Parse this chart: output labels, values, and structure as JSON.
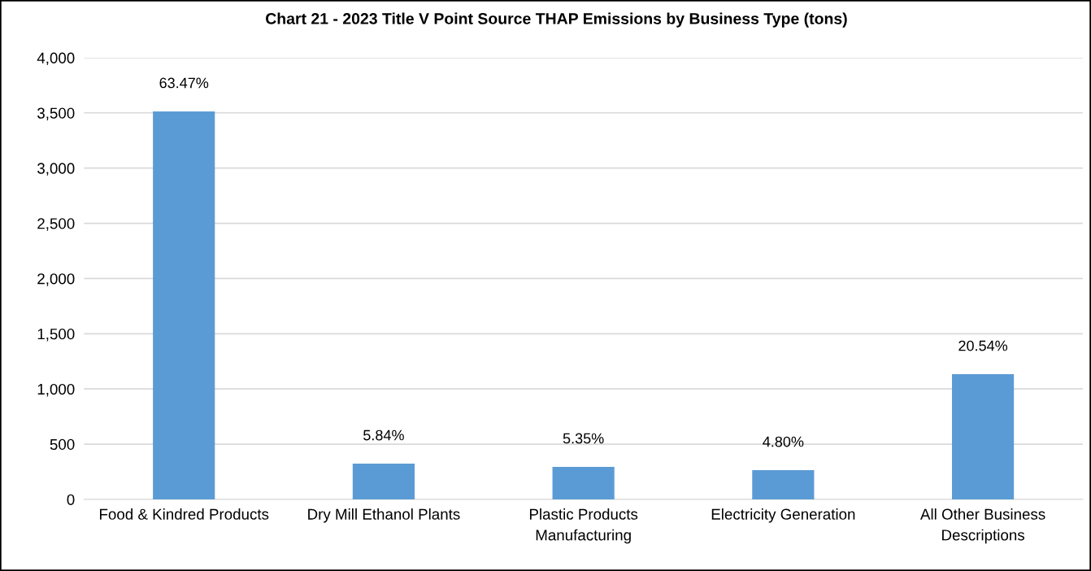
{
  "chart_data": {
    "type": "bar",
    "title": "Chart 21 - 2023 Title V Point Source THAP Emissions by Business Type (tons)",
    "categories": [
      "Food & Kindred Products",
      "Dry Mill Ethanol Plants",
      "Plastic Products\nManufacturing",
      "Electricity Generation",
      "All Other Business\nDescriptions"
    ],
    "values": [
      3514,
      324,
      295,
      265,
      1134
    ],
    "annotations": [
      {
        "text": "63.47%",
        "x": "Food & Kindred Products",
        "y": 3514
      },
      {
        "text": "5.84%",
        "x": "Dry Mill Ethanol Plants",
        "y": 324
      },
      {
        "text": "5.35%",
        "x": "Plastic Products\nManufacturing",
        "y": 295
      },
      {
        "text": "4.80%",
        "x": "Electricity Generation",
        "y": 265
      },
      {
        "text": "20.54%",
        "x": "All Other Business\nDescriptions",
        "y": 1134
      }
    ],
    "color": "#5b9bd5",
    "ylim": [
      0,
      4000
    ],
    "yticks": [
      {
        "value": 0,
        "label": "0"
      },
      {
        "value": 500,
        "label": "500"
      },
      {
        "value": 1000,
        "label": "1,000"
      },
      {
        "value": 1500,
        "label": "1,500"
      },
      {
        "value": 2000,
        "label": "2,000"
      },
      {
        "value": 2500,
        "label": "2,500"
      },
      {
        "value": 3000,
        "label": "3,000"
      },
      {
        "value": 3500,
        "label": "3,500"
      },
      {
        "value": 4000,
        "label": "4,000"
      }
    ],
    "grid": "y"
  }
}
